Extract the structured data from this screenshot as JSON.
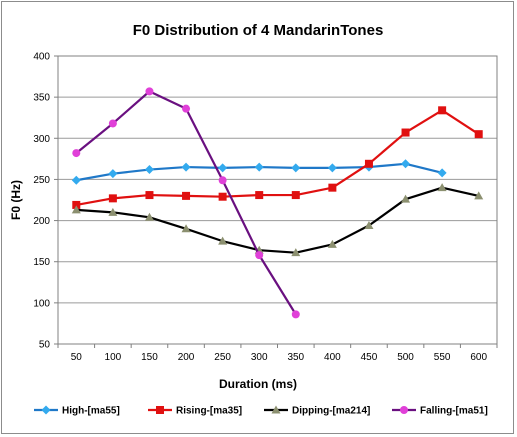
{
  "chart_data": {
    "type": "line",
    "title": "F0 Distribution of 4 MandarinTones",
    "xlabel": "Duration (ms)",
    "ylabel": "F0 (Hz)",
    "x": [
      50,
      100,
      150,
      200,
      250,
      300,
      350,
      400,
      450,
      500,
      550,
      600
    ],
    "x_tick_labels": [
      "50",
      "100",
      "150",
      "200",
      "250",
      "300",
      "350",
      "400",
      "450",
      "500",
      "550",
      "600"
    ],
    "ylim": [
      50,
      400
    ],
    "y_ticks": [
      50,
      100,
      150,
      200,
      250,
      300,
      350,
      400
    ],
    "y_tick_labels": [
      "50",
      "100",
      "150",
      "200",
      "250",
      "300",
      "350",
      "400"
    ],
    "grid": "horizontal",
    "legend_position": "bottom",
    "series": [
      {
        "name": "High-[ma55]",
        "color": "#1f78c8",
        "marker_color": "#33aaee",
        "marker": "diamond",
        "x": [
          50,
          100,
          150,
          200,
          250,
          300,
          350,
          400,
          450,
          500,
          550
        ],
        "values": [
          249,
          257,
          262,
          265,
          264,
          265,
          264,
          264,
          265,
          269,
          258
        ]
      },
      {
        "name": "Rising-[ma35]",
        "color": "#e01010",
        "marker_color": "#e01010",
        "marker": "square",
        "x": [
          50,
          100,
          150,
          200,
          250,
          300,
          350,
          400,
          450,
          500,
          550,
          600
        ],
        "values": [
          219,
          227,
          231,
          230,
          229,
          231,
          231,
          240,
          269,
          307,
          334,
          305
        ]
      },
      {
        "name": "Dipping-[ma214]",
        "color": "#000000",
        "marker_color": "#8c9070",
        "marker": "triangle",
        "x": [
          50,
          100,
          150,
          200,
          250,
          300,
          350,
          400,
          450,
          500,
          550,
          600
        ],
        "values": [
          213,
          210,
          204,
          190,
          175,
          164,
          161,
          171,
          194,
          226,
          240,
          230
        ]
      },
      {
        "name": "Falling-[ma51]",
        "color": "#6a1080",
        "marker_color": "#e040d8",
        "marker": "circle",
        "x": [
          50,
          100,
          150,
          200,
          250,
          300,
          350
        ],
        "values": [
          282,
          318,
          357,
          336,
          249,
          158,
          86
        ]
      }
    ]
  }
}
